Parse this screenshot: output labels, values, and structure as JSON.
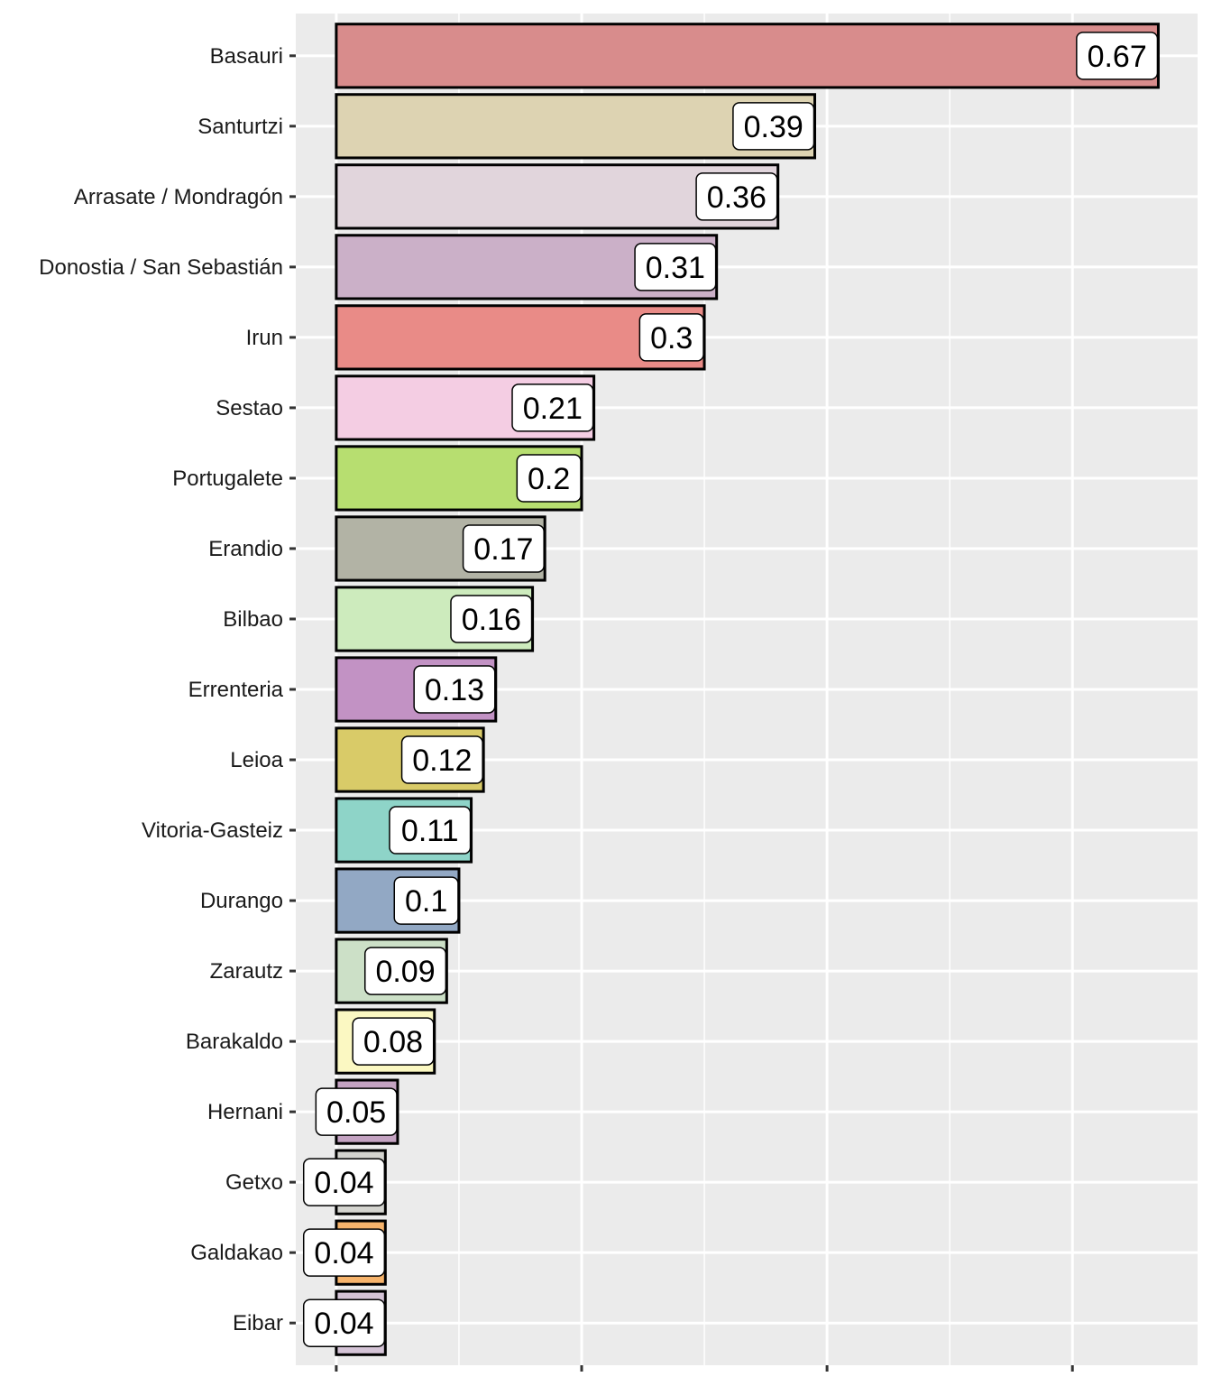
{
  "chart_data": {
    "type": "bar",
    "orientation": "horizontal",
    "title": "",
    "xlabel": "",
    "ylabel": "",
    "xlim": [
      -0.033,
      0.702
    ],
    "x_major_ticks": [
      0,
      0.2,
      0.4,
      0.6
    ],
    "x_minor_ticks": [
      0.1,
      0.3,
      0.5
    ],
    "x_tick_labels_visible": false,
    "grid": true,
    "legend": "none",
    "panel_background": "#EBEBEB",
    "bar_outline": "#000000",
    "categories": [
      "Basauri",
      "Santurtzi",
      "Arrasate / Mondragón",
      "Donostia / San Sebastián",
      "Irun",
      "Sestao",
      "Portugalete",
      "Erandio",
      "Bilbao",
      "Errenteria",
      "Leioa",
      "Vitoria-Gasteiz",
      "Durango",
      "Zarautz",
      "Barakaldo",
      "Hernani",
      "Getxo",
      "Galdakao",
      "Eibar"
    ],
    "values": [
      0.67,
      0.39,
      0.36,
      0.31,
      0.3,
      0.21,
      0.2,
      0.17,
      0.16,
      0.13,
      0.12,
      0.11,
      0.1,
      0.09,
      0.08,
      0.05,
      0.04,
      0.04,
      0.04
    ],
    "labels": [
      "0.67",
      "0.39",
      "0.36",
      "0.31",
      "0.3",
      "0.21",
      "0.2",
      "0.17",
      "0.16",
      "0.13",
      "0.12",
      "0.11",
      "0.1",
      "0.09",
      "0.08",
      "0.05",
      "0.04",
      "0.04",
      "0.04"
    ],
    "colors": [
      "#D88C8C",
      "#DDD3B2",
      "#E1D5DC",
      "#CBB0C8",
      "#E98B87",
      "#F4CDE3",
      "#B7DE70",
      "#B2B3A5",
      "#CDEBBD",
      "#C292C4",
      "#D9CB68",
      "#8ED4C8",
      "#92A8C4",
      "#CCE0C7",
      "#FBF8C2",
      "#C4A3C2",
      "#D4D4CF",
      "#F6B36B",
      "#D4C3D6"
    ]
  }
}
